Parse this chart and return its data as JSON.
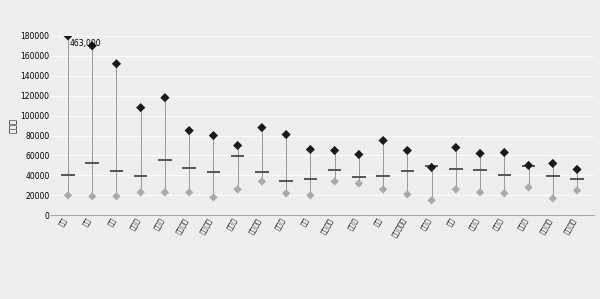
{
  "categories": [
    "영국",
    "미국",
    "독일",
    "프랑스",
    "스위스",
    "네덜란드",
    "아일랜드",
    "벨기에",
    "노르웨이",
    "캐나다",
    "한국",
    "이탈리아",
    "덴마크",
    "일본",
    "오스트리아",
    "그리스",
    "호주",
    "스웨덴",
    "스페인",
    "핀란드",
    "포르투갈",
    "뉴질랜드"
  ],
  "min_vals": [
    20000,
    19000,
    19000,
    23000,
    23000,
    23000,
    18000,
    26000,
    34000,
    22000,
    20000,
    34000,
    32000,
    26000,
    21000,
    15000,
    26000,
    23000,
    22000,
    28000,
    17000,
    25000
  ],
  "mean_vals": [
    40000,
    52000,
    44000,
    39000,
    55000,
    47000,
    43000,
    59000,
    43000,
    34000,
    36000,
    45000,
    38000,
    39000,
    44000,
    49000,
    46000,
    45000,
    40000,
    49000,
    39000,
    36000
  ],
  "max_vals": [
    463000,
    170000,
    152000,
    108000,
    118000,
    85000,
    80000,
    70000,
    88000,
    81000,
    66000,
    65000,
    61000,
    75000,
    65000,
    48000,
    68000,
    62000,
    63000,
    50000,
    52000,
    46000
  ],
  "max_vals_clipped": [
    180000,
    170000,
    152000,
    108000,
    118000,
    85000,
    80000,
    70000,
    88000,
    81000,
    66000,
    65000,
    61000,
    75000,
    65000,
    48000,
    68000,
    62000,
    63000,
    50000,
    52000,
    46000
  ],
  "annotation": "463,000",
  "ylabel": "미달러",
  "ylim": [
    0,
    180000
  ],
  "yticks": [
    0,
    20000,
    40000,
    60000,
    80000,
    100000,
    120000,
    140000,
    160000,
    180000
  ],
  "ytick_labels": [
    "0",
    "20000",
    "40000",
    "60000",
    "80000",
    "100000",
    "120000",
    "140000",
    "160000",
    "180000"
  ],
  "min_color": "#aaaaaa",
  "max_color": "#1a1a1a",
  "mean_color": "#555555",
  "line_color": "#999999",
  "bg_color": "#eeeeee",
  "grid_color": "#ffffff"
}
